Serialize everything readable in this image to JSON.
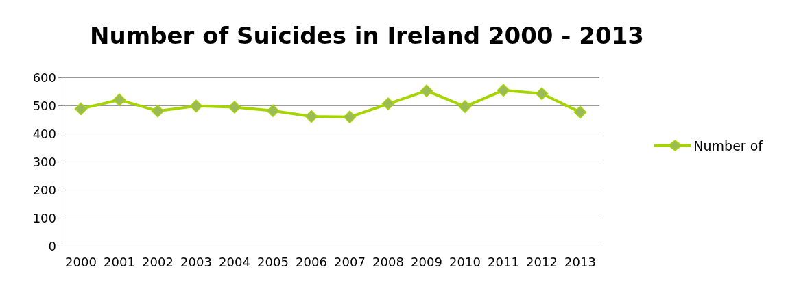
{
  "chart_data": {
    "type": "line",
    "title": "Number of Suicides in Ireland 2000 - 2013",
    "categories": [
      "2000",
      "2001",
      "2002",
      "2003",
      "2004",
      "2005",
      "2006",
      "2007",
      "2008",
      "2009",
      "2010",
      "2011",
      "2012",
      "2013"
    ],
    "series": [
      {
        "name": "Number of",
        "color": "#a6d400",
        "values": [
          488,
          520,
          480,
          498,
          494,
          481,
          461,
          459,
          506,
          552,
          496,
          554,
          542,
          476
        ]
      }
    ],
    "ylim": [
      0,
      600
    ],
    "yticks": [
      0,
      100,
      200,
      300,
      400,
      500,
      600
    ],
    "grid": "y",
    "legend": "right",
    "marker": "diamond",
    "line_style": "solid"
  }
}
